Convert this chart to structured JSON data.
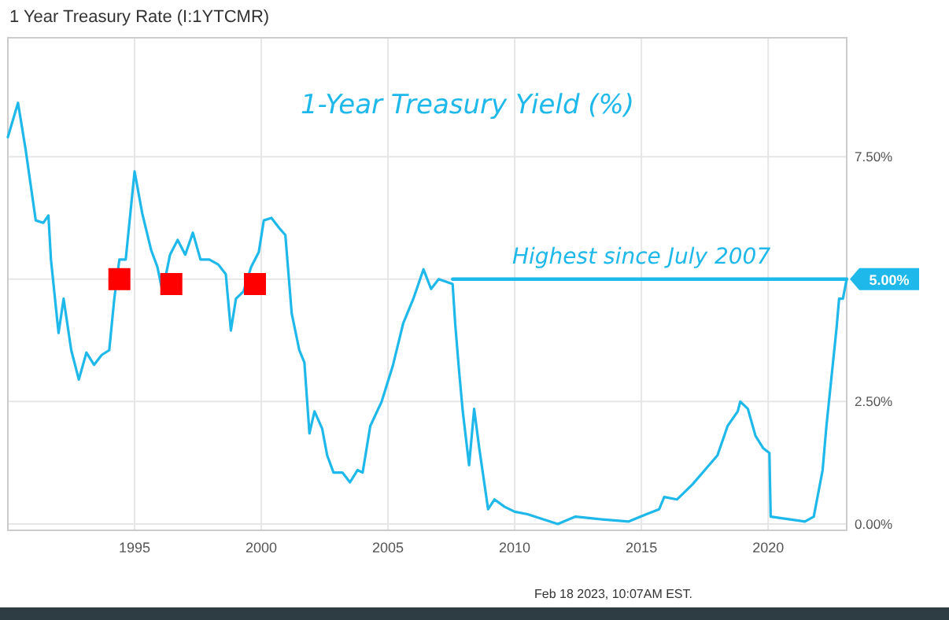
{
  "chart_data": {
    "type": "line",
    "title": "1 Year Treasury Rate (I:1YTCMR)",
    "xlim": [
      1990,
      2023.1
    ],
    "xticks": [
      1995,
      2000,
      2005,
      2010,
      2015,
      2020
    ],
    "ylim": [
      -0.13,
      9.93
    ],
    "yticks": [
      {
        "value": 0,
        "label": "0.00%"
      },
      {
        "value": 2.5,
        "label": "2.50%"
      },
      {
        "value": 5,
        "label": null
      },
      {
        "value": 7.5,
        "label": "7.50%"
      }
    ],
    "grid": true,
    "marker": "none",
    "line_style": "solid",
    "annotations": [
      "1-Year Treasury Yield (%)",
      {
        "text": "Highest since July 2007",
        "x": 2015,
        "y": 5
      },
      "Feb 18 2023, 10:07AM EST."
    ],
    "series": [
      {
        "color": "#1fb8ea",
        "x": [
          1990.0,
          1990.4,
          1990.7,
          1991.1,
          1991.4,
          1991.6,
          1991.7,
          1992.0,
          1992.2,
          1992.5,
          1992.8,
          1993.1,
          1993.4,
          1993.7,
          1994.0,
          1994.2,
          1994.4,
          1994.65,
          1995.0,
          1995.3,
          1995.65,
          1995.9,
          1996.1,
          1996.4,
          1996.7,
          1997.0,
          1997.3,
          1997.6,
          1997.95,
          1998.3,
          1998.6,
          1998.8,
          1999.0,
          1999.3,
          1999.6,
          1999.9,
          2000.1,
          2000.4,
          2000.7,
          2000.95,
          2001.2,
          2001.5,
          2001.7,
          2001.9,
          2002.1,
          2002.4,
          2002.6,
          2002.85,
          2003.2,
          2003.5,
          2003.8,
          2004.0,
          2004.3,
          2004.75,
          2005.2,
          2005.6,
          2006.0,
          2006.4,
          2006.7,
          2007.0,
          2007.55,
          2007.65,
          2007.8,
          2007.95,
          2008.2,
          2008.4,
          2008.6,
          2008.95,
          2009.2,
          2009.6,
          2010.0,
          2010.5,
          2011.1,
          2011.7,
          2012.4,
          2013.3,
          2014.5,
          2015.2,
          2015.7,
          2015.9,
          2016.4,
          2017.0,
          2017.5,
          2018.0,
          2018.4,
          2018.8,
          2018.9,
          2019.2,
          2019.5,
          2019.8,
          2020.05,
          2020.1,
          2020.75,
          2021.45,
          2021.8,
          2022.15,
          2022.3,
          2022.5,
          2022.7,
          2022.8,
          2022.95,
          2023.1
        ],
        "values": [
          7.9,
          8.6,
          7.65,
          6.2,
          6.15,
          6.3,
          5.4,
          3.9,
          4.6,
          3.55,
          2.95,
          3.5,
          3.25,
          3.45,
          3.55,
          4.6,
          5.4,
          5.4,
          7.2,
          6.35,
          5.6,
          5.25,
          4.75,
          5.5,
          5.8,
          5.5,
          5.95,
          5.4,
          5.4,
          5.3,
          5.1,
          3.95,
          4.6,
          4.75,
          5.25,
          5.55,
          6.2,
          6.25,
          6.05,
          5.9,
          4.3,
          3.55,
          3.3,
          1.85,
          2.3,
          1.95,
          1.4,
          1.05,
          1.05,
          0.85,
          1.1,
          1.05,
          2.0,
          2.5,
          3.25,
          4.1,
          4.6,
          5.2,
          4.8,
          5.0,
          4.9,
          4.1,
          3.15,
          2.3,
          1.2,
          2.35,
          1.55,
          0.3,
          0.5,
          0.35,
          0.25,
          0.2,
          0.1,
          0.0,
          0.15,
          0.1,
          0.05,
          0.2,
          0.3,
          0.55,
          0.5,
          0.8,
          1.1,
          1.4,
          2.0,
          2.3,
          2.5,
          2.35,
          1.8,
          1.55,
          1.45,
          0.15,
          0.1,
          0.05,
          0.15,
          1.1,
          2.0,
          3.0,
          4.0,
          4.6,
          4.6,
          5.0
        ],
        "value_labels": [
          null,
          null,
          null,
          null,
          null,
          null,
          null,
          null,
          null,
          null,
          null,
          null,
          null,
          null,
          null,
          null,
          null,
          null,
          null,
          null,
          null,
          null,
          null,
          null,
          null,
          null,
          null,
          null,
          null,
          null,
          null,
          null,
          null,
          null,
          null,
          null,
          null,
          null,
          null,
          null,
          null,
          null,
          null,
          null,
          null,
          null,
          null,
          null,
          null,
          null,
          null,
          null,
          null,
          null,
          null,
          null,
          null,
          null,
          null,
          null,
          null,
          null,
          null,
          null,
          null,
          null,
          null,
          null,
          null,
          null,
          null,
          null,
          null,
          null,
          null,
          null,
          null,
          null,
          null,
          null,
          null,
          null,
          null,
          null,
          null,
          null,
          null,
          null,
          null,
          null,
          null,
          null,
          null,
          null,
          null,
          null,
          null,
          null,
          null,
          null,
          null,
          "5.00%"
        ]
      },
      {
        "type": "line",
        "color": "#1fb8ea",
        "x": [
          2007.55,
          2023.1
        ],
        "values": [
          5.0,
          5.0
        ]
      },
      {
        "type": "scatter",
        "color": "#ff0000",
        "marker": "square",
        "x": [
          1994.4,
          1996.45,
          1999.75
        ],
        "values": [
          5.0,
          4.9,
          4.9
        ]
      }
    ]
  }
}
